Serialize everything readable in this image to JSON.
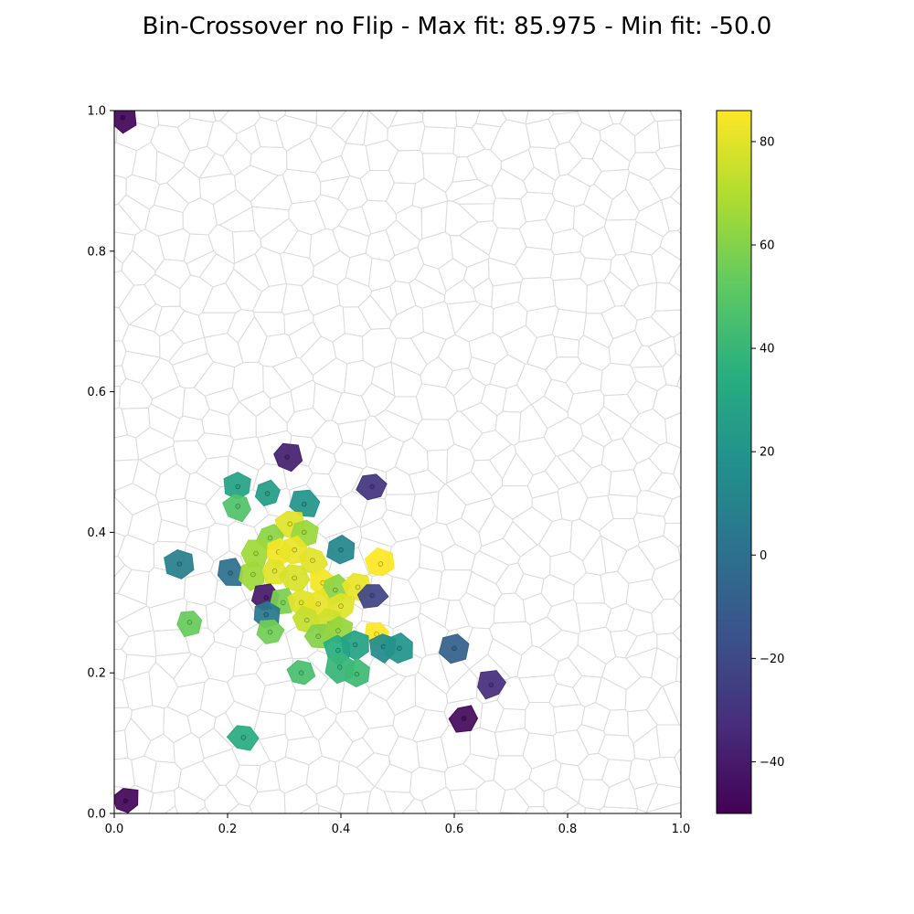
{
  "chart_data": {
    "type": "heatmap",
    "title": "Bin-Crossover no Flip - Max fit: 85.975 - Min fit: -50.0",
    "xlim": [
      0,
      1
    ],
    "ylim": [
      0,
      1
    ],
    "xticks": [
      "0.0",
      "0.2",
      "0.4",
      "0.6",
      "0.8",
      "1.0"
    ],
    "yticks": [
      "0.0",
      "0.2",
      "0.4",
      "0.6",
      "0.8",
      "1.0"
    ],
    "grid": false,
    "background": "voronoi-tessellation",
    "colormap": "viridis",
    "colorbar": {
      "min": -50,
      "max": 86,
      "ticks": [
        "−40",
        "−20",
        "0",
        "20",
        "40",
        "60",
        "80"
      ],
      "tick_values": [
        -40,
        -20,
        0,
        20,
        40,
        60,
        80
      ],
      "placement": "right"
    },
    "points": [
      {
        "x": 0.015,
        "y": 0.99,
        "value": -48
      },
      {
        "x": 0.02,
        "y": 0.018,
        "value": -48
      },
      {
        "x": 0.305,
        "y": 0.507,
        "value": -38
      },
      {
        "x": 0.455,
        "y": 0.465,
        "value": -30
      },
      {
        "x": 0.218,
        "y": 0.465,
        "value": 28
      },
      {
        "x": 0.27,
        "y": 0.455,
        "value": 25
      },
      {
        "x": 0.218,
        "y": 0.437,
        "value": 48
      },
      {
        "x": 0.335,
        "y": 0.44,
        "value": 20
      },
      {
        "x": 0.31,
        "y": 0.412,
        "value": 80
      },
      {
        "x": 0.335,
        "y": 0.4,
        "value": 65
      },
      {
        "x": 0.275,
        "y": 0.392,
        "value": 62
      },
      {
        "x": 0.25,
        "y": 0.37,
        "value": 66
      },
      {
        "x": 0.29,
        "y": 0.372,
        "value": 84
      },
      {
        "x": 0.318,
        "y": 0.375,
        "value": 82
      },
      {
        "x": 0.35,
        "y": 0.36,
        "value": 80
      },
      {
        "x": 0.4,
        "y": 0.375,
        "value": 12
      },
      {
        "x": 0.47,
        "y": 0.355,
        "value": 86
      },
      {
        "x": 0.115,
        "y": 0.355,
        "value": 8
      },
      {
        "x": 0.205,
        "y": 0.342,
        "value": 0
      },
      {
        "x": 0.245,
        "y": 0.34,
        "value": 66
      },
      {
        "x": 0.283,
        "y": 0.345,
        "value": 80
      },
      {
        "x": 0.318,
        "y": 0.335,
        "value": 78
      },
      {
        "x": 0.368,
        "y": 0.328,
        "value": 84
      },
      {
        "x": 0.39,
        "y": 0.318,
        "value": 62
      },
      {
        "x": 0.43,
        "y": 0.322,
        "value": 82
      },
      {
        "x": 0.455,
        "y": 0.31,
        "value": -22
      },
      {
        "x": 0.268,
        "y": 0.307,
        "value": -40
      },
      {
        "x": 0.298,
        "y": 0.3,
        "value": 58
      },
      {
        "x": 0.33,
        "y": 0.3,
        "value": 80
      },
      {
        "x": 0.36,
        "y": 0.298,
        "value": 82
      },
      {
        "x": 0.4,
        "y": 0.295,
        "value": 80
      },
      {
        "x": 0.268,
        "y": 0.283,
        "value": 4
      },
      {
        "x": 0.34,
        "y": 0.275,
        "value": 74
      },
      {
        "x": 0.38,
        "y": 0.27,
        "value": 76
      },
      {
        "x": 0.133,
        "y": 0.272,
        "value": 54
      },
      {
        "x": 0.275,
        "y": 0.258,
        "value": 56
      },
      {
        "x": 0.36,
        "y": 0.252,
        "value": 60
      },
      {
        "x": 0.395,
        "y": 0.26,
        "value": 64
      },
      {
        "x": 0.463,
        "y": 0.255,
        "value": 86
      },
      {
        "x": 0.395,
        "y": 0.232,
        "value": 35
      },
      {
        "x": 0.425,
        "y": 0.24,
        "value": 28
      },
      {
        "x": 0.475,
        "y": 0.237,
        "value": 14
      },
      {
        "x": 0.503,
        "y": 0.235,
        "value": 20
      },
      {
        "x": 0.6,
        "y": 0.235,
        "value": -8
      },
      {
        "x": 0.33,
        "y": 0.2,
        "value": 45
      },
      {
        "x": 0.398,
        "y": 0.208,
        "value": 40
      },
      {
        "x": 0.428,
        "y": 0.198,
        "value": 42
      },
      {
        "x": 0.665,
        "y": 0.183,
        "value": -32
      },
      {
        "x": 0.617,
        "y": 0.135,
        "value": -46
      },
      {
        "x": 0.228,
        "y": 0.108,
        "value": 34
      }
    ]
  }
}
